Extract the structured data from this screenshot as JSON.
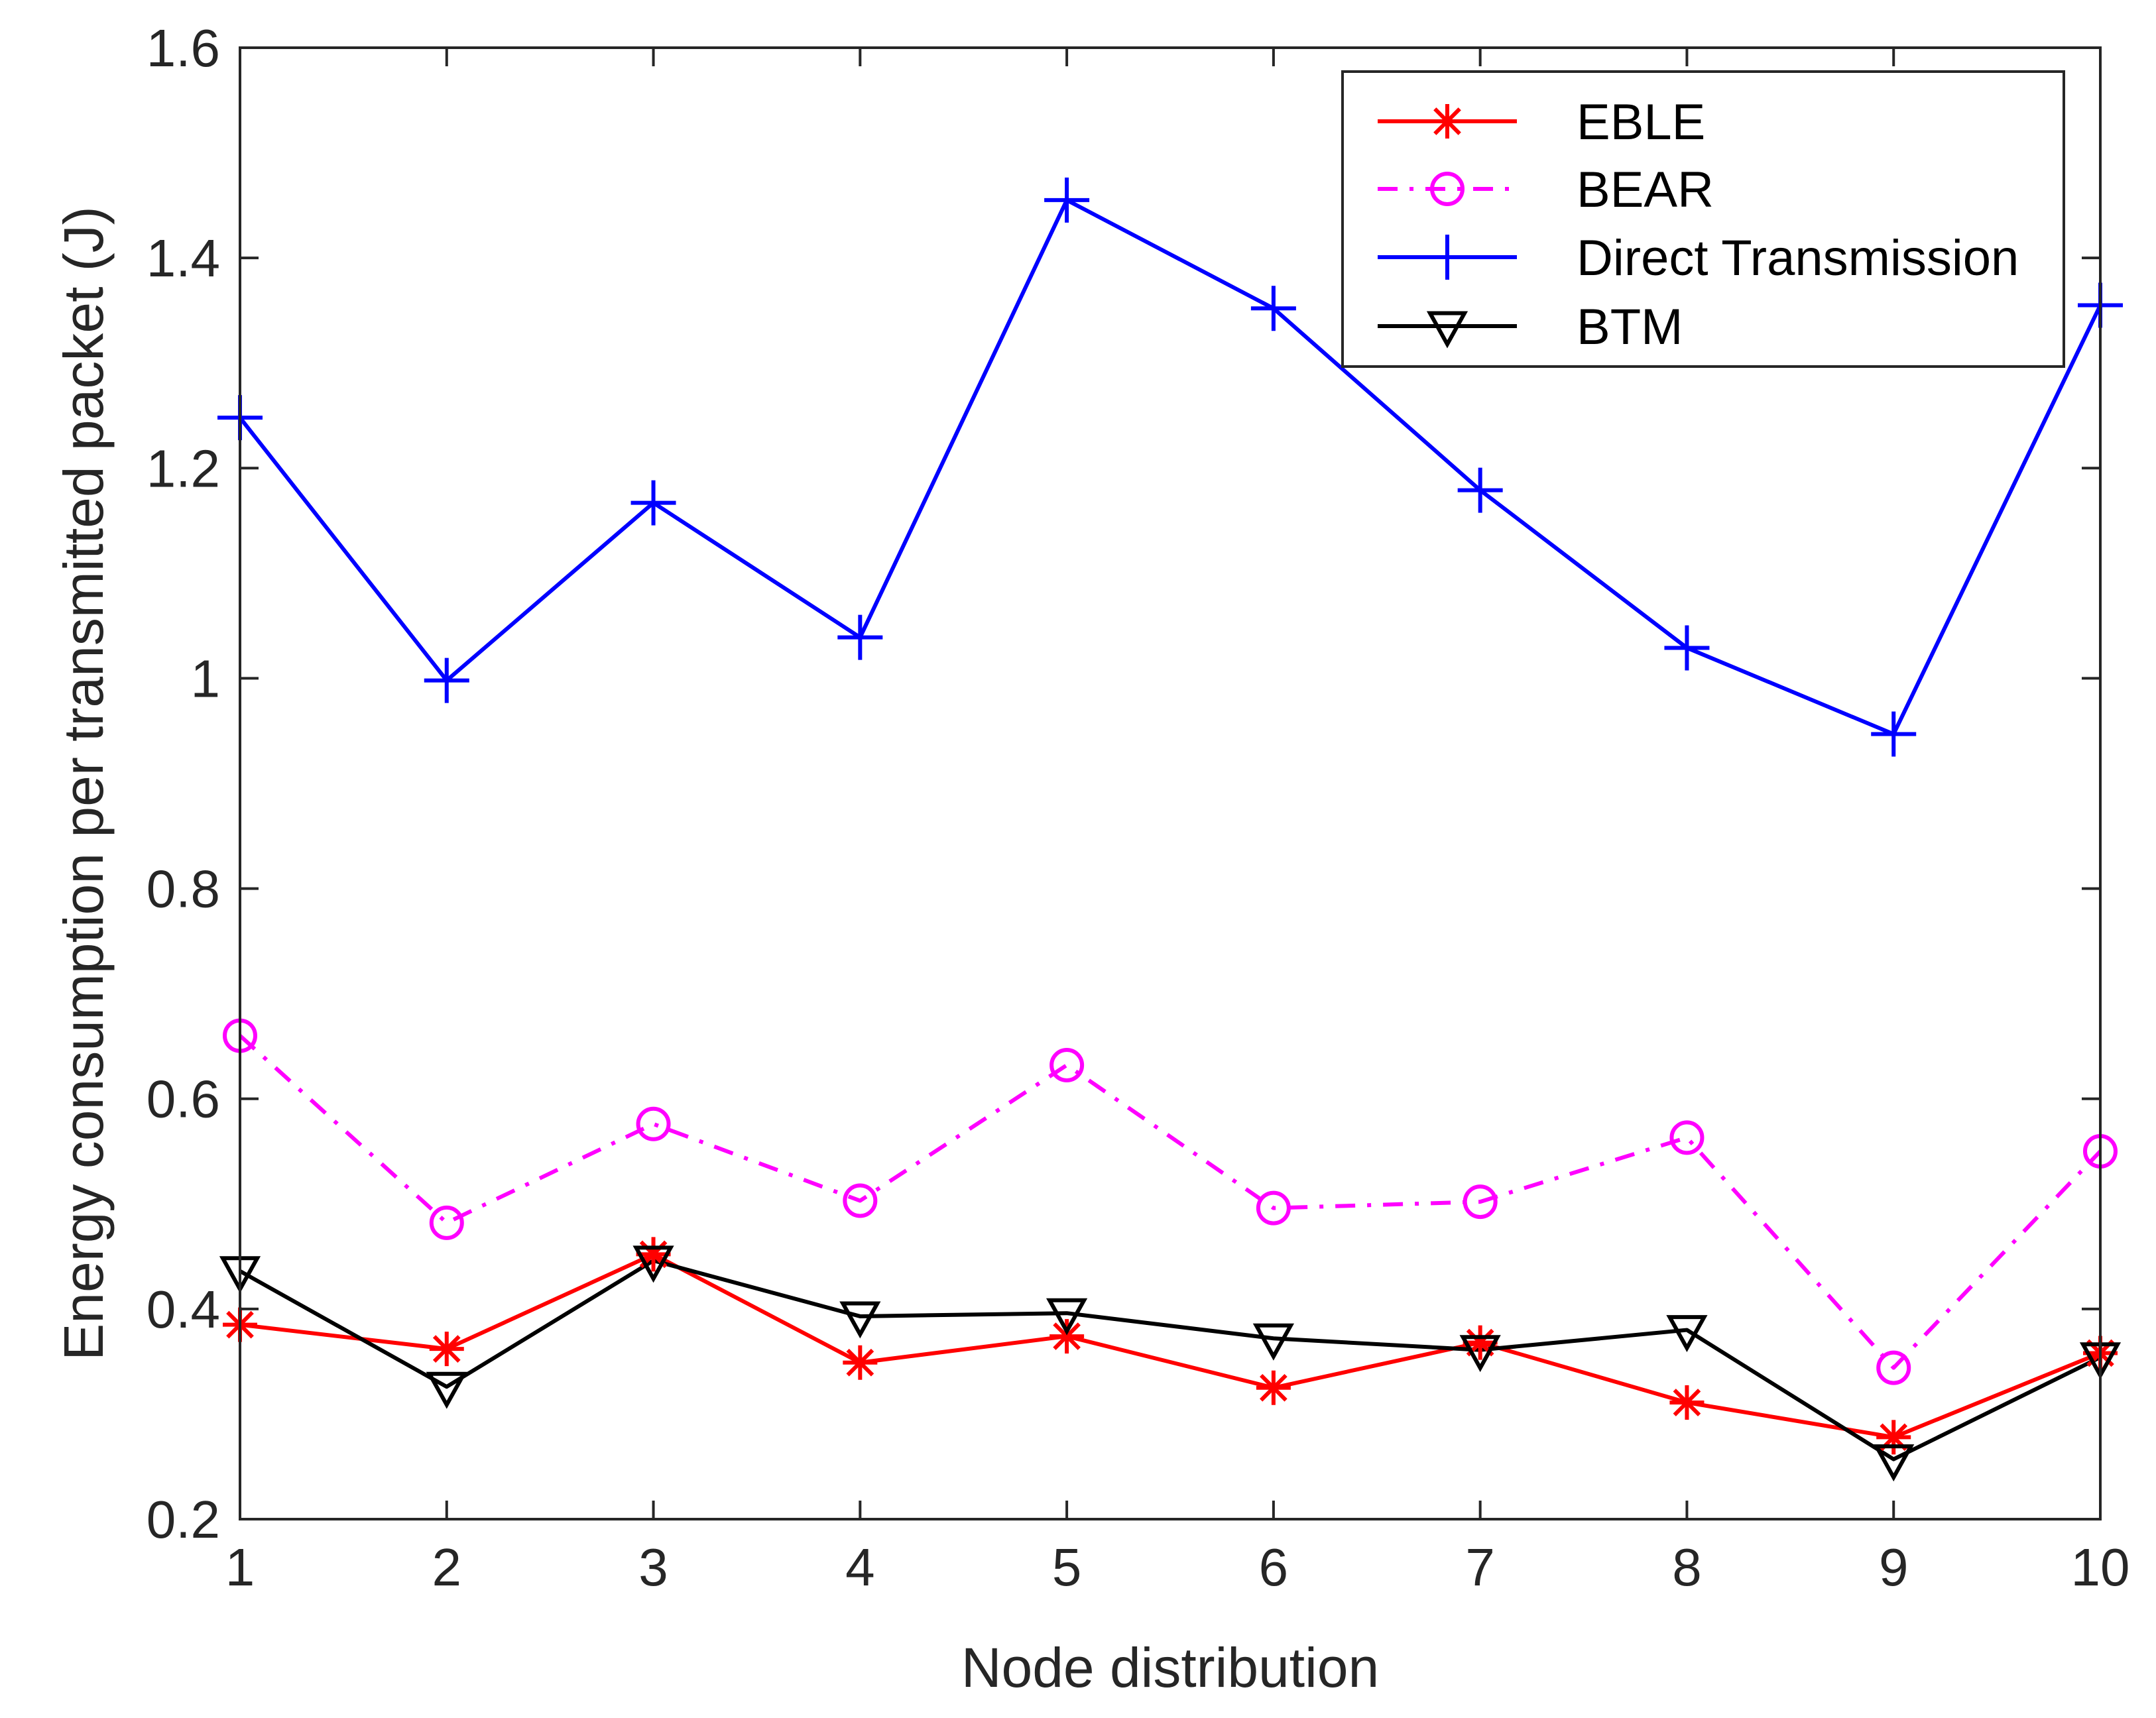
{
  "chart_data": {
    "type": "line",
    "title": "",
    "xlabel": "Node distribution",
    "ylabel": "Energy consumption per transmitted packet (J)",
    "x": [
      1,
      2,
      3,
      4,
      5,
      6,
      7,
      8,
      9,
      10
    ],
    "xlim": [
      1,
      10
    ],
    "ylim": [
      0.2,
      1.6
    ],
    "xticks": [
      1,
      2,
      3,
      4,
      5,
      6,
      7,
      8,
      9,
      10
    ],
    "xtick_labels": [
      "1",
      "2",
      "3",
      "4",
      "5",
      "6",
      "7",
      "8",
      "9",
      "10"
    ],
    "yticks": [
      0.2,
      0.4,
      0.6,
      0.8,
      1.0,
      1.2,
      1.4,
      1.6
    ],
    "ytick_labels": [
      "0.2",
      "0.4",
      "0.6",
      "0.8",
      "1",
      "1.2",
      "1.4",
      "1.6"
    ],
    "grid": false,
    "legend_position": "top-right",
    "series": [
      {
        "name": "EBLE",
        "color": "#ff0000",
        "marker": "asterisk",
        "linestyle": "solid",
        "values": [
          0.385,
          0.362,
          0.452,
          0.349,
          0.374,
          0.325,
          0.368,
          0.311,
          0.278,
          0.358
        ]
      },
      {
        "name": "BEAR",
        "color": "#ff00ff",
        "marker": "circle",
        "linestyle": "dashdot",
        "values": [
          0.66,
          0.482,
          0.576,
          0.503,
          0.632,
          0.496,
          0.502,
          0.563,
          0.344,
          0.55
        ]
      },
      {
        "name": "Direct Transmission",
        "color": "#0000ff",
        "marker": "plus",
        "linestyle": "solid",
        "values": [
          1.248,
          0.998,
          1.167,
          1.039,
          1.455,
          1.352,
          1.179,
          1.029,
          0.947,
          1.355
        ]
      },
      {
        "name": "BTM",
        "color": "#000000",
        "marker": "triangle-down",
        "linestyle": "solid",
        "values": [
          0.436,
          0.326,
          0.446,
          0.393,
          0.396,
          0.372,
          0.361,
          0.38,
          0.257,
          0.354
        ]
      }
    ]
  }
}
